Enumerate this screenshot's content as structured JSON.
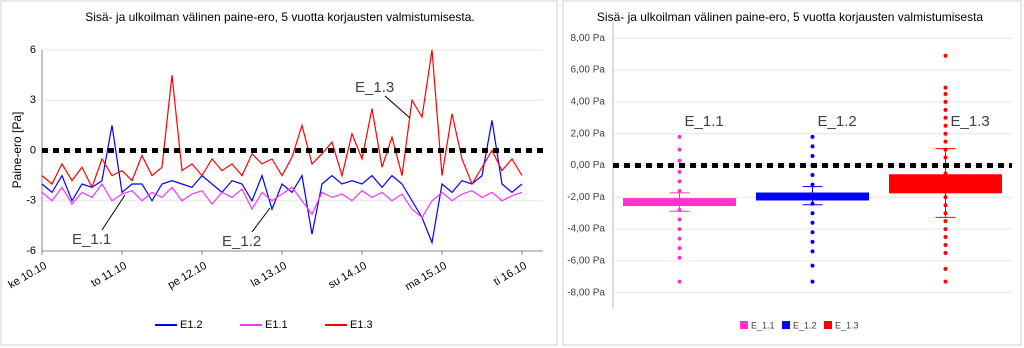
{
  "chart_data": [
    {
      "type": "line",
      "title": "Sisä- ja ulkoilman välinen paine-ero, 5 vuotta korjausten valmistumisesta.",
      "y_label": "Paine-ero [Pa]",
      "x": [
        0,
        0.125,
        0.25,
        0.375,
        0.5,
        0.625,
        0.75,
        0.875,
        1,
        1.125,
        1.25,
        1.375,
        1.5,
        1.625,
        1.75,
        1.875,
        2,
        2.125,
        2.25,
        2.375,
        2.5,
        2.625,
        2.75,
        2.875,
        3,
        3.125,
        3.25,
        3.375,
        3.5,
        3.625,
        3.75,
        3.875,
        4,
        4.125,
        4.25,
        4.375,
        4.5,
        4.625,
        4.75,
        4.875,
        5,
        5.125,
        5.25,
        5.375,
        5.5,
        5.625,
        5.75,
        5.875,
        6
      ],
      "xlim": [
        0,
        6
      ],
      "xticks": [
        {
          "value": 0,
          "label": "ke 10.10"
        },
        {
          "value": 1,
          "label": "to 11.10"
        },
        {
          "value": 2,
          "label": "pe 12.10"
        },
        {
          "value": 3,
          "label": "la 13.10"
        },
        {
          "value": 4,
          "label": "su 14.10"
        },
        {
          "value": 5,
          "label": "ma 15.10"
        },
        {
          "value": 6,
          "label": "ti 16.10"
        }
      ],
      "ylim": [
        -6,
        6
      ],
      "yticks": [
        -6,
        -3,
        0,
        3,
        6
      ],
      "reference_line": 0,
      "annotations": [
        "E_1.1",
        "E_1.2",
        "E_1.3"
      ],
      "series": [
        {
          "name": "E1.2",
          "color": "#0000ff",
          "values": [
            -2,
            -2.5,
            -1.5,
            -3,
            -2,
            -2.2,
            -1.8,
            1.5,
            -2.5,
            -2,
            -2,
            -3,
            -2,
            -1.8,
            -2,
            -2.2,
            -1.5,
            -2,
            -2.5,
            -1.8,
            -2,
            -3,
            -1.5,
            -3.5,
            -2,
            -2.5,
            -1.5,
            -5,
            -2,
            -1.5,
            -2,
            -1.8,
            -2,
            -1.5,
            -2.2,
            -1.5,
            -2,
            -3,
            -4,
            -5.5,
            -2,
            -2.5,
            -1.8,
            -2,
            -1.5,
            1.8,
            -2,
            -2.5,
            -2
          ]
        },
        {
          "name": "E1.1",
          "color": "#ff33ff",
          "values": [
            -2.5,
            -3,
            -2.2,
            -3.2,
            -2.5,
            -2.8,
            -2,
            -3,
            -2.6,
            -2.4,
            -3,
            -2.5,
            -2.8,
            -2.2,
            -3,
            -2.6,
            -2.4,
            -3.2,
            -2.5,
            -2.8,
            -2.3,
            -3.5,
            -2.5,
            -3,
            -2.6,
            -2.2,
            -3,
            -3.8,
            -2.5,
            -2.8,
            -2.6,
            -3,
            -2.4,
            -2.8,
            -2.5,
            -3,
            -2.6,
            -3.5,
            -4,
            -3,
            -2.5,
            -3,
            -2.6,
            -2.4,
            -2.8,
            -2.5,
            -3,
            -2.7,
            -2.5
          ]
        },
        {
          "name": "E1.3",
          "color": "#ff0000",
          "values": [
            -1.5,
            -2,
            -0.8,
            -1.8,
            -1,
            -2.2,
            -0.5,
            -1.5,
            -1.2,
            -1.8,
            -0.3,
            -1.5,
            -1,
            4.5,
            -1.2,
            -0.8,
            -1.5,
            -0.5,
            -1.2,
            -0.8,
            -1.5,
            -0.2,
            -0.8,
            -0.5,
            -1.5,
            -0.4,
            1.5,
            -0.8,
            -0.2,
            0.5,
            -1.5,
            1,
            -0.5,
            2.5,
            -1,
            0.8,
            -1.5,
            3,
            2,
            6,
            -1.5,
            2.2,
            -0.5,
            -2,
            -1,
            0,
            -1.2,
            -0.5,
            -1.5
          ]
        }
      ]
    },
    {
      "type": "floating_bar",
      "title": "Sisä- ja ulkoilman välinen paine-ero, 5 vuotta korjausten valmistumisesta",
      "categories": [
        "E_1.1",
        "E_1.2",
        "E_1.3"
      ],
      "colors": [
        "#ff33cc",
        "#0000ff",
        "#ff0000"
      ],
      "high": [
        -2.05,
        -1.7,
        -0.55
      ],
      "low": [
        -2.55,
        -2.2,
        -1.75
      ],
      "means": [
        -2.3,
        -1.9,
        -1.1
      ],
      "errors": [
        0.58,
        0.57,
        2.16
      ],
      "points": [
        [
          1.8,
          1.0,
          0.3,
          -0.4,
          -1.0,
          -1.6,
          -2.2,
          -2.8,
          -3.4,
          -4.0,
          -4.6,
          -5.2,
          -5.8,
          -7.3
        ],
        [
          1.8,
          1.2,
          0.6,
          0,
          -0.6,
          -1.2,
          -2.4,
          -3.0,
          -3.6,
          -4.2,
          -4.8,
          -5.4,
          -6.3,
          -7.3
        ],
        [
          6.9,
          4.9,
          4.5,
          4.0,
          3.5,
          3.0,
          2.5,
          2.0,
          1.5,
          1.0,
          0.5,
          -0.5,
          -2.0,
          -2.5,
          -3.0,
          -3.5,
          -4.0,
          -4.5,
          -5.0,
          -5.5,
          -6.5,
          -7.3
        ]
      ],
      "ylim": [
        -9,
        9
      ],
      "yticks": [
        {
          "value": -8,
          "label": "-8,00 Pa"
        },
        {
          "value": -6,
          "label": "-6,00 Pa"
        },
        {
          "value": -4,
          "label": "-4,00 Pa"
        },
        {
          "value": -2,
          "label": "-2,00 Pa"
        },
        {
          "value": 0,
          "label": "0,00 Pa"
        },
        {
          "value": 2,
          "label": "2,00 Pa"
        },
        {
          "value": 4,
          "label": "4,00 Pa"
        },
        {
          "value": 6,
          "label": "6,00 Pa"
        },
        {
          "value": 8,
          "label": "8,00 Pa"
        }
      ],
      "reference_line": 0
    }
  ]
}
